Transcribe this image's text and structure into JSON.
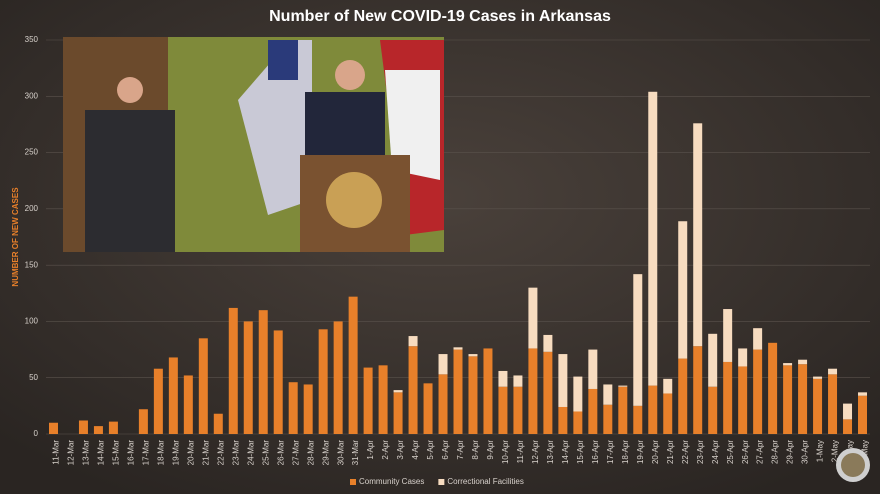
{
  "chart_data": {
    "type": "bar",
    "stacked": true,
    "title": "Number of New COVID-19 Cases in Arkansas",
    "y_label": "NUMBER OF NEW CASES",
    "categories": [
      "11-Mar",
      "12-Mar",
      "13-Mar",
      "14-Mar",
      "15-Mar",
      "16-Mar",
      "17-Mar",
      "18-Mar",
      "19-Mar",
      "20-Mar",
      "21-Mar",
      "22-Mar",
      "23-Mar",
      "24-Mar",
      "25-Mar",
      "26-Mar",
      "27-Mar",
      "28-Mar",
      "29-Mar",
      "30-Mar",
      "31-Mar",
      "1-Apr",
      "2-Apr",
      "3-Apr",
      "4-Apr",
      "5-Apr",
      "6-Apr",
      "7-Apr",
      "8-Apr",
      "9-Apr",
      "10-Apr",
      "11-Apr",
      "12-Apr",
      "13-Apr",
      "14-Apr",
      "15-Apr",
      "16-Apr",
      "17-Apr",
      "18-Apr",
      "19-Apr",
      "20-Apr",
      "21-Apr",
      "22-Apr",
      "23-Apr",
      "24-Apr",
      "25-Apr",
      "26-Apr",
      "27-Apr",
      "28-Apr",
      "29-Apr",
      "30-Apr",
      "1-May",
      "2-May",
      "3-May",
      "4-May"
    ],
    "series": [
      {
        "name": "Community Cases",
        "color": "#e8802a",
        "values": [
          10,
          0,
          12,
          7,
          11,
          0,
          22,
          58,
          68,
          52,
          85,
          18,
          112,
          100,
          110,
          92,
          46,
          44,
          93,
          100,
          122,
          59,
          61,
          37,
          78,
          45,
          53,
          75,
          69,
          76,
          42,
          42,
          76,
          73,
          24,
          20,
          40,
          26,
          42,
          25,
          43,
          36,
          67,
          78,
          42,
          64,
          60,
          75,
          81,
          61,
          62,
          49,
          53,
          13,
          34
        ]
      },
      {
        "name": "Correctional Facilities",
        "color": "#f7dcc0",
        "values": [
          0,
          0,
          0,
          0,
          0,
          0,
          0,
          0,
          0,
          0,
          0,
          0,
          0,
          0,
          0,
          0,
          0,
          0,
          0,
          0,
          0,
          0,
          0,
          2,
          9,
          0,
          18,
          2,
          2,
          0,
          14,
          10,
          54,
          15,
          47,
          31,
          35,
          18,
          1,
          117,
          261,
          13,
          122,
          198,
          47,
          47,
          16,
          19,
          0,
          2,
          4,
          2,
          5,
          14,
          3
        ]
      }
    ],
    "ylim": [
      0,
      350
    ],
    "yticks": [
      0,
      50,
      100,
      150,
      200,
      250,
      300,
      350
    ],
    "grid": true,
    "legend": "bottom"
  }
}
